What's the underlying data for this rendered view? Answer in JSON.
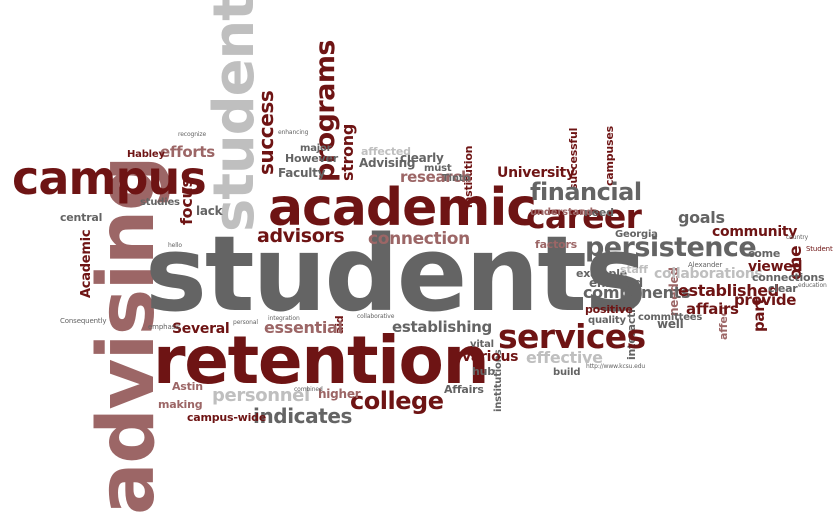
{
  "words": {
    "students": "students",
    "retention": "retention",
    "advising": "advising",
    "academic": "academic",
    "campus": "campus",
    "student": "student",
    "services": "services",
    "career": "career",
    "persistence": "persistence",
    "financial": "financial",
    "college": "college",
    "advisors": "advisors",
    "programs": "programs",
    "indicates": "indicates",
    "personnel": "personnel",
    "essential": "essential",
    "connection": "connection",
    "effective": "effective",
    "components": "components",
    "established": "established",
    "collaborations": "collaborations",
    "community": "community",
    "establishing": "establishing",
    "focus": "focus",
    "university": "University",
    "research": "research",
    "goals": "goals",
    "affairs_lower": "affairs",
    "affairs_cap": "Affairs",
    "provide": "provide",
    "viewed": "viewed",
    "one": "one",
    "success": "success",
    "strong": "strong",
    "efforts": "efforts",
    "lack": "lack",
    "several": "Several",
    "various": "various",
    "hub": "hub",
    "higher": "higher",
    "astin": "Astin",
    "making": "making",
    "campus_wide": "campus-wide",
    "academic_cap": "Academic",
    "habley": "Habley",
    "faculty": "Faculty",
    "however": "However",
    "major": "major",
    "advising_cap": "Advising",
    "clearly": "clearly",
    "must": "must",
    "tinto": "Tinto",
    "georgia": "Georgia",
    "need": "need",
    "factors": "factors",
    "enrolled": "enrolled",
    "example": "example",
    "staff": "staff",
    "positive": "positive",
    "quality": "quality",
    "well": "well",
    "part": "part",
    "connections": "connections",
    "clear": "clear",
    "successful": "successful",
    "campuses": "campuses",
    "institution": "institution",
    "central": "central",
    "studies": "studies",
    "affected": "affected",
    "understand": "understand",
    "build": "build",
    "interaction": "interaction",
    "committees": "committees",
    "institutions": "institutions",
    "vital": "vital",
    "aid": "aid",
    "needed": "needed",
    "affect": "affect",
    "come": "come",
    "consequently": "Consequently",
    "emphasis": "emphasis",
    "url": "http://www.kcsu.edu",
    "alexander": "Alexander",
    "recognize": "recognize",
    "enhancing": "enhancing",
    "combined": "combined",
    "collaborative": "collaborative",
    "personal": "personal",
    "integration": "integration",
    "education": "education",
    "hello": "hello",
    "country": "country",
    "student_cap": "Student"
  }
}
